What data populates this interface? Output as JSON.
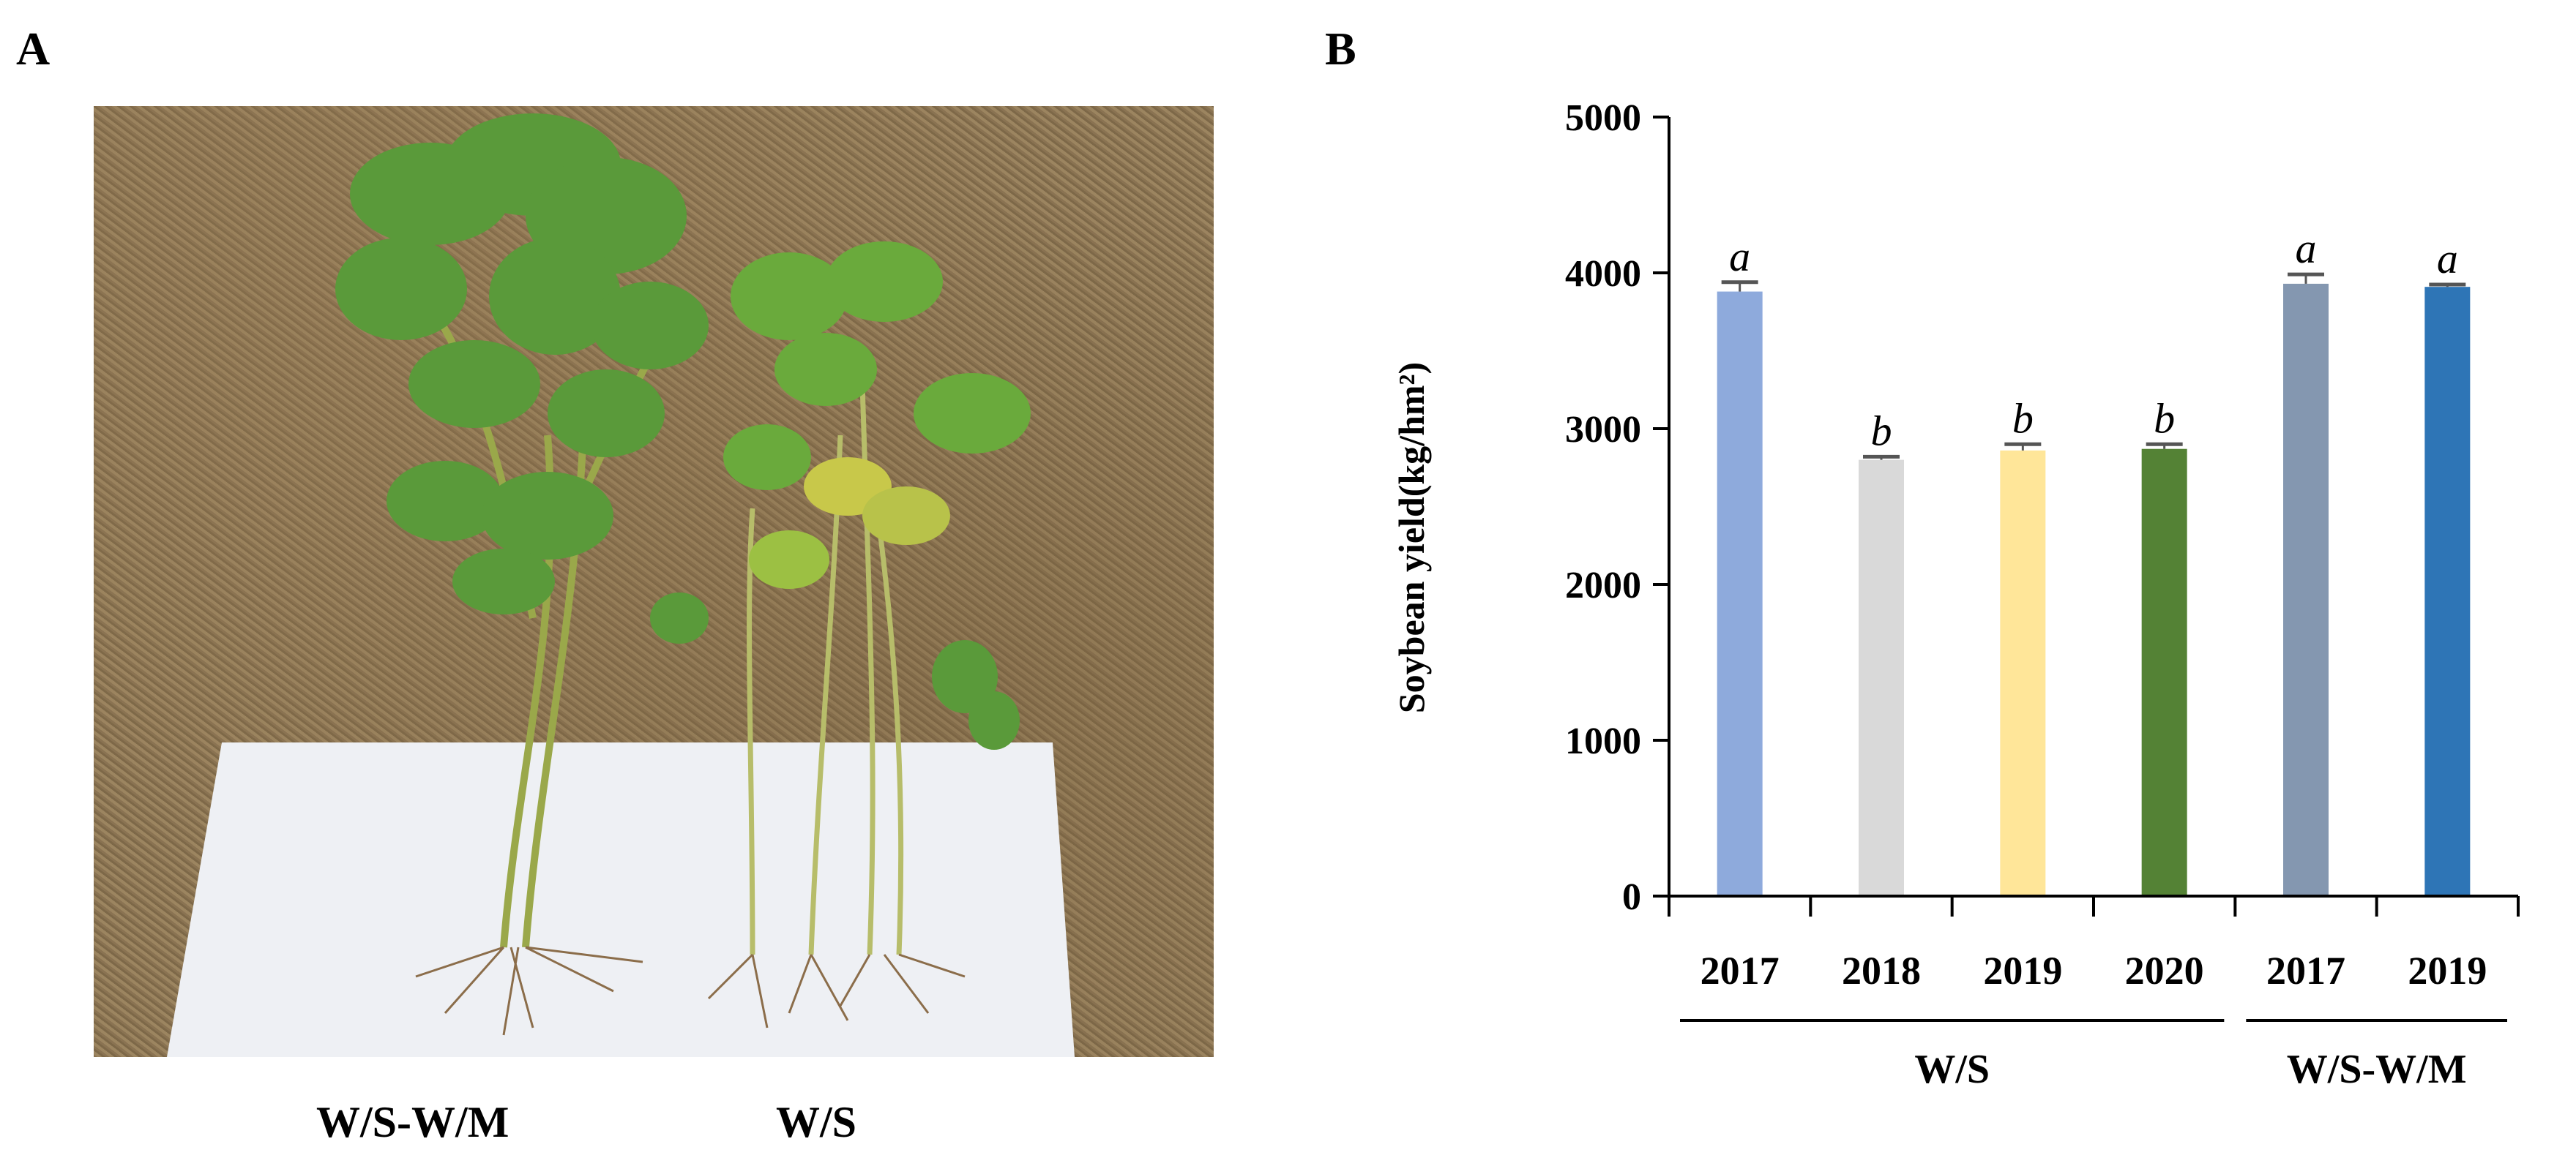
{
  "panels": {
    "a_label": "A",
    "b_label": "B"
  },
  "photo": {
    "caption_left": "W/S-W/M",
    "caption_right": "W/S"
  },
  "chart_data": {
    "type": "bar",
    "ylabel": "Soybean yield(kg/hm²)",
    "ylim": [
      0,
      5000
    ],
    "yticks": [
      0,
      1000,
      2000,
      3000,
      4000,
      5000
    ],
    "categories": [
      "2017",
      "2018",
      "2019",
      "2020",
      "2017",
      "2019"
    ],
    "groups": [
      {
        "name": "W/S",
        "categories": [
          "2017",
          "2018",
          "2019",
          "2020"
        ]
      },
      {
        "name": "W/S-W/M",
        "categories": [
          "2017",
          "2019"
        ]
      }
    ],
    "values": [
      3880,
      2800,
      2860,
      2870,
      3930,
      3910
    ],
    "errors": [
      60,
      20,
      40,
      30,
      60,
      15
    ],
    "significance": [
      "a",
      "b",
      "b",
      "b",
      "a",
      "a"
    ],
    "colors": [
      "#8eaadc",
      "#d9d9d9",
      "#ffe699",
      "#548235",
      "#8497b0",
      "#2e75b6"
    ]
  }
}
